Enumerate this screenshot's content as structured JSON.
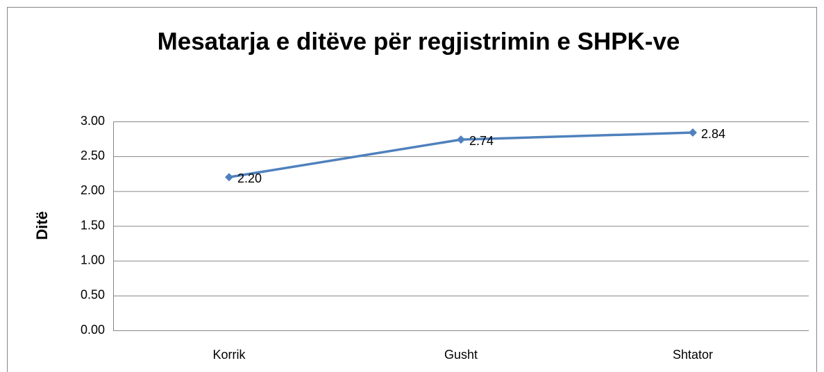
{
  "chart_data": {
    "type": "line",
    "title": "Mesatarja e ditëve për regjistrimin e SHPK-ve",
    "y_label": "Ditë",
    "categories": [
      "Korrik",
      "Gusht",
      "Shtator"
    ],
    "series": [
      {
        "name": "Ditë",
        "color": "#4f81bd",
        "values": [
          2.2,
          2.74,
          2.84
        ],
        "value_labels": [
          "2.20",
          "2.74",
          "2.84"
        ]
      }
    ],
    "ylim": [
      0,
      3
    ],
    "yticks": [
      {
        "value": 0,
        "label": "0.00"
      },
      {
        "value": 0.5,
        "label": "0.50"
      },
      {
        "value": 1,
        "label": "1.00"
      },
      {
        "value": 1.5,
        "label": "1.50"
      },
      {
        "value": 2,
        "label": "2.00"
      },
      {
        "value": 2.5,
        "label": "2.50"
      },
      {
        "value": 3,
        "label": "3.00"
      }
    ],
    "grid": true
  }
}
